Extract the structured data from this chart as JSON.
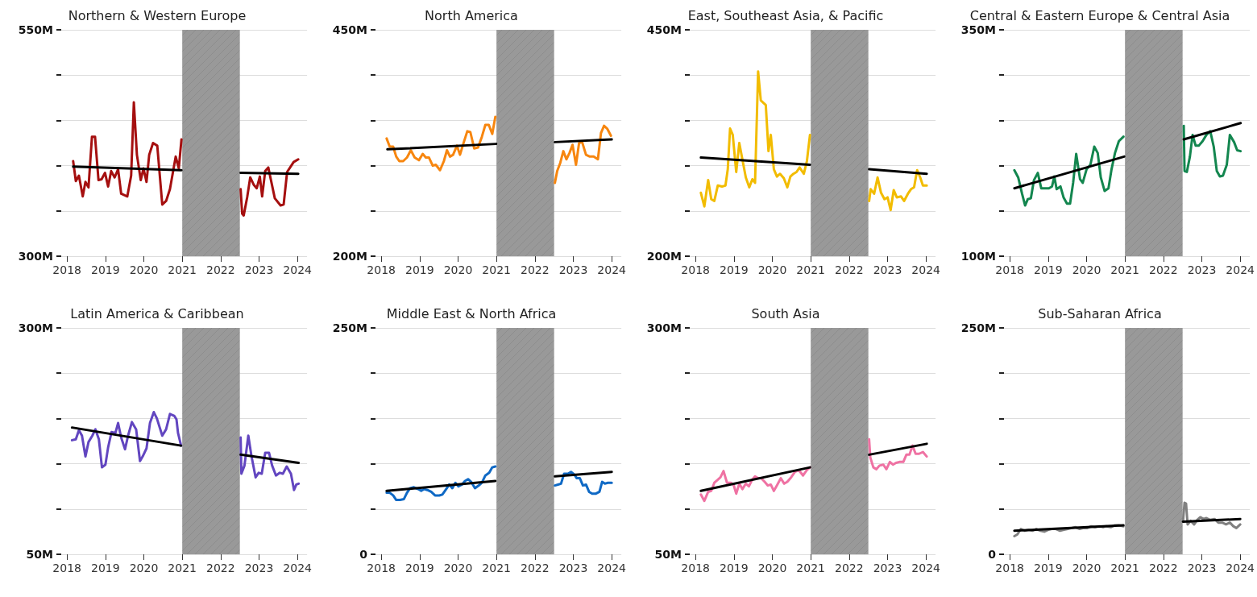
{
  "chart_data": [
    {
      "type": "line",
      "title": "Northern & Western Europe",
      "xlim": [
        2017.85,
        2024.25
      ],
      "xticks": [
        2018,
        2019,
        2020,
        2021,
        2022,
        2023,
        2024
      ],
      "ylim": [
        300,
        550
      ],
      "yticks": [
        {
          "value": 300,
          "label": "300M"
        },
        {
          "value": 350,
          "label": null
        },
        {
          "value": 400,
          "label": null
        },
        {
          "value": 450,
          "label": null
        },
        {
          "value": 500,
          "label": null
        },
        {
          "value": 550,
          "label": "550M"
        }
      ],
      "grid": "y",
      "marker": "none",
      "bands": [
        {
          "axis": "x",
          "from": 2021,
          "to": 2022.5,
          "color": "#999999"
        }
      ],
      "series": [
        {
          "color": "#a50f0f",
          "x": [
            2018.16,
            2018.23,
            2018.31,
            2018.41,
            2018.48,
            2018.56,
            2018.65,
            2018.73,
            2018.82,
            2018.9,
            2018.99,
            2019.07,
            2019.15,
            2019.24,
            2019.33,
            2019.41,
            2019.57,
            2019.67,
            2019.74,
            2019.82,
            2019.92,
            2019.99,
            2020.07,
            2020.14,
            2020.24,
            2020.35,
            2020.48,
            2020.58,
            2020.68,
            2020.83,
            2020.91,
            2020.98
          ],
          "values": [
            405,
            383,
            389,
            366,
            382,
            376,
            432,
            432,
            384,
            385,
            392,
            377,
            394,
            387,
            396,
            369,
            366,
            389,
            470,
            412,
            384,
            397,
            382,
            412,
            425,
            422,
            357,
            361,
            374,
            410,
            397,
            429
          ]
        },
        {
          "color": "#a50f0f",
          "x": [
            2022.52,
            2022.56,
            2022.6,
            2022.69,
            2022.77,
            2022.86,
            2022.94,
            2023.02,
            2023.08,
            2023.16,
            2023.24,
            2023.41,
            2023.56,
            2023.64,
            2023.73,
            2023.9,
            2024.02
          ],
          "values": [
            374,
            347,
            345,
            365,
            387,
            379,
            375,
            388,
            366,
            394,
            398,
            364,
            356,
            357,
            393,
            404,
            407
          ]
        },
        {
          "color": "#000000",
          "x": [
            2018.16,
            2020.98
          ],
          "values": [
            399,
            395
          ]
        },
        {
          "color": "#000000",
          "x": [
            2022.52,
            2024.02
          ],
          "values": [
            392,
            391
          ]
        }
      ]
    },
    {
      "type": "line",
      "title": "North America",
      "xlim": [
        2017.85,
        2024.25
      ],
      "xticks": [
        2018,
        2019,
        2020,
        2021,
        2022,
        2023,
        2024
      ],
      "ylim": [
        200,
        450
      ],
      "yticks": [
        {
          "value": 200,
          "label": "200M"
        },
        {
          "value": 250,
          "label": null
        },
        {
          "value": 300,
          "label": null
        },
        {
          "value": 350,
          "label": null
        },
        {
          "value": 400,
          "label": null
        },
        {
          "value": 450,
          "label": "450M"
        }
      ],
      "grid": "y",
      "marker": "none",
      "bands": [
        {
          "axis": "x",
          "from": 2021,
          "to": 2022.5,
          "color": "#999999"
        }
      ],
      "series": [
        {
          "color": "#f7860f",
          "x": [
            2018.14,
            2018.22,
            2018.31,
            2018.39,
            2018.47,
            2018.57,
            2018.67,
            2018.77,
            2018.87,
            2018.98,
            2019.08,
            2019.16,
            2019.24,
            2019.34,
            2019.42,
            2019.53,
            2019.63,
            2019.71,
            2019.79,
            2019.87,
            2019.97,
            2020.05,
            2020.15,
            2020.24,
            2020.32,
            2020.42,
            2020.52,
            2020.62,
            2020.71,
            2020.8,
            2020.89,
            2020.97
          ],
          "values": [
            330,
            321,
            321,
            310,
            305,
            305,
            309,
            317,
            309,
            306,
            313,
            309,
            309,
            300,
            301,
            295,
            305,
            317,
            310,
            312,
            322,
            312,
            326,
            338,
            337,
            319,
            320,
            332,
            345,
            345,
            335,
            354
          ]
        },
        {
          "color": "#f7860f",
          "x": [
            2022.52,
            2022.58,
            2022.66,
            2022.74,
            2022.82,
            2022.9,
            2022.98,
            2023.07,
            2023.15,
            2023.23,
            2023.33,
            2023.43,
            2023.53,
            2023.64,
            2023.72,
            2023.8,
            2023.88,
            2023.98
          ],
          "values": [
            281,
            294,
            303,
            316,
            307,
            314,
            323,
            301,
            325,
            326,
            312,
            310,
            310,
            307,
            336,
            344,
            341,
            333
          ]
        },
        {
          "color": "#000000",
          "x": [
            2018.16,
            2020.99
          ],
          "values": [
            318,
            324
          ]
        },
        {
          "color": "#000000",
          "x": [
            2022.52,
            2024.0
          ],
          "values": [
            326,
            329
          ]
        }
      ]
    },
    {
      "type": "line",
      "title": "East, Southeast Asia, & Pacific",
      "xlim": [
        2017.85,
        2024.25
      ],
      "xticks": [
        2018,
        2019,
        2020,
        2021,
        2022,
        2023,
        2024
      ],
      "ylim": [
        200,
        450
      ],
      "yticks": [
        {
          "value": 200,
          "label": "200M"
        },
        {
          "value": 250,
          "label": null
        },
        {
          "value": 300,
          "label": null
        },
        {
          "value": 350,
          "label": null
        },
        {
          "value": 400,
          "label": null
        },
        {
          "value": 450,
          "label": "450M"
        }
      ],
      "grid": "y",
      "marker": "none",
      "bands": [
        {
          "axis": "x",
          "from": 2021,
          "to": 2022.5,
          "color": "#999999"
        }
      ],
      "series": [
        {
          "color": "#f2bc00",
          "x": [
            2018.14,
            2018.23,
            2018.33,
            2018.41,
            2018.49,
            2018.58,
            2018.69,
            2018.78,
            2018.84,
            2018.9,
            2018.97,
            2019.06,
            2019.14,
            2019.22,
            2019.31,
            2019.4,
            2019.48,
            2019.55,
            2019.63,
            2019.7,
            2019.83,
            2019.9,
            2019.96,
            2020.04,
            2020.12,
            2020.2,
            2020.3,
            2020.39,
            2020.47,
            2020.55,
            2020.63,
            2020.71,
            2020.82,
            2020.9,
            2020.98
          ],
          "values": [
            270,
            255,
            284,
            263,
            261,
            278,
            277,
            278,
            296,
            341,
            334,
            293,
            325,
            307,
            287,
            276,
            285,
            281,
            404,
            372,
            367,
            316,
            334,
            296,
            288,
            291,
            286,
            276,
            288,
            291,
            293,
            298,
            291,
            305,
            334
          ]
        },
        {
          "color": "#f2bc00",
          "x": [
            2022.52,
            2022.56,
            2022.65,
            2022.74,
            2022.83,
            2022.92,
            2023.0,
            2023.08,
            2023.16,
            2023.24,
            2023.35,
            2023.43,
            2023.53,
            2023.61,
            2023.69,
            2023.77,
            2023.85,
            2023.92,
            2024.02
          ],
          "values": [
            261,
            274,
            269,
            287,
            270,
            263,
            265,
            251,
            273,
            265,
            266,
            261,
            269,
            274,
            276,
            295,
            287,
            278,
            278
          ]
        },
        {
          "color": "#000000",
          "x": [
            2018.14,
            2020.98
          ],
          "values": [
            309,
            301
          ]
        },
        {
          "color": "#000000",
          "x": [
            2022.52,
            2024.02
          ],
          "values": [
            296,
            291
          ]
        }
      ]
    },
    {
      "type": "line",
      "title": "Central & Eastern Europe & Central Asia",
      "xlim": [
        2017.85,
        2024.25
      ],
      "xticks": [
        2018,
        2019,
        2020,
        2021,
        2022,
        2023,
        2024
      ],
      "ylim": [
        100,
        350
      ],
      "yticks": [
        {
          "value": 100,
          "label": "100M"
        },
        {
          "value": 150,
          "label": null
        },
        {
          "value": 200,
          "label": null
        },
        {
          "value": 250,
          "label": null
        },
        {
          "value": 300,
          "label": null
        },
        {
          "value": 350,
          "label": "350M"
        }
      ],
      "grid": "y",
      "marker": "none",
      "bands": [
        {
          "axis": "x",
          "from": 2021,
          "to": 2022.5,
          "color": "#999999"
        }
      ],
      "series": [
        {
          "color": "#13864f",
          "x": [
            2018.12,
            2018.22,
            2018.32,
            2018.4,
            2018.47,
            2018.55,
            2018.63,
            2018.73,
            2018.82,
            2018.92,
            2019.02,
            2019.1,
            2019.16,
            2019.22,
            2019.32,
            2019.4,
            2019.49,
            2019.57,
            2019.65,
            2019.73,
            2019.83,
            2019.9,
            2020.0,
            2020.1,
            2020.2,
            2020.29,
            2020.37,
            2020.47,
            2020.57,
            2020.65,
            2020.74,
            2020.84,
            2020.96
          ],
          "values": [
            195,
            187,
            169,
            156,
            163,
            164,
            184,
            192,
            175,
            175,
            175,
            177,
            188,
            174,
            177,
            165,
            158,
            158,
            181,
            213,
            185,
            181,
            196,
            201,
            221,
            214,
            187,
            172,
            175,
            196,
            214,
            227,
            232
          ]
        },
        {
          "color": "#13864f",
          "x": [
            2022.53,
            2022.55,
            2022.61,
            2022.69,
            2022.76,
            2022.84,
            2022.92,
            2023.02,
            2023.12,
            2023.22,
            2023.31,
            2023.39,
            2023.47,
            2023.55,
            2023.65,
            2023.73,
            2023.84,
            2023.92,
            2024.01
          ],
          "values": [
            244,
            194,
            193,
            210,
            234,
            222,
            222,
            227,
            234,
            238,
            221,
            194,
            188,
            189,
            201,
            234,
            226,
            217,
            216
          ]
        },
        {
          "color": "#000000",
          "x": [
            2018.12,
            2020.98
          ],
          "values": [
            175,
            210
          ]
        },
        {
          "color": "#000000",
          "x": [
            2022.53,
            2024.01
          ],
          "values": [
            229,
            247
          ]
        }
      ]
    },
    {
      "type": "line",
      "title": "Latin America & Caribbean",
      "xlim": [
        2017.85,
        2024.25
      ],
      "xticks": [
        2018,
        2019,
        2020,
        2021,
        2022,
        2023,
        2024
      ],
      "ylim": [
        50,
        300
      ],
      "yticks": [
        {
          "value": 50,
          "label": "50M"
        },
        {
          "value": 100,
          "label": null
        },
        {
          "value": 150,
          "label": null
        },
        {
          "value": 200,
          "label": null
        },
        {
          "value": 250,
          "label": null
        },
        {
          "value": 300,
          "label": "300M"
        }
      ],
      "grid": "y",
      "marker": "none",
      "bands": [
        {
          "axis": "x",
          "from": 2021,
          "to": 2022.5,
          "color": "#999999"
        }
      ],
      "series": [
        {
          "color": "#6246c0",
          "x": [
            2018.13,
            2018.23,
            2018.31,
            2018.39,
            2018.48,
            2018.56,
            2018.66,
            2018.74,
            2018.83,
            2018.91,
            2019.0,
            2019.07,
            2019.16,
            2019.26,
            2019.33,
            2019.41,
            2019.51,
            2019.59,
            2019.69,
            2019.8,
            2019.9,
            2019.97,
            2020.07,
            2020.16,
            2020.26,
            2020.34,
            2020.48,
            2020.58,
            2020.68,
            2020.79,
            2020.85,
            2020.89,
            2020.97
          ],
          "values": [
            176,
            177,
            187,
            181,
            158,
            174,
            181,
            188,
            177,
            146,
            149,
            168,
            185,
            184,
            195,
            179,
            166,
            181,
            196,
            188,
            153,
            158,
            167,
            195,
            207,
            200,
            181,
            188,
            205,
            203,
            199,
            184,
            170
          ]
        },
        {
          "color": "#6246c0",
          "x": [
            2022.52,
            2022.54,
            2022.62,
            2022.72,
            2022.8,
            2022.91,
            2022.99,
            2023.07,
            2023.16,
            2023.26,
            2023.34,
            2023.44,
            2023.54,
            2023.62,
            2023.72,
            2023.83,
            2023.91,
            2023.97,
            2024.03
          ],
          "values": [
            179,
            139,
            148,
            181,
            159,
            135,
            140,
            139,
            162,
            162,
            148,
            137,
            140,
            139,
            147,
            139,
            121,
            127,
            128
          ]
        },
        {
          "color": "#000000",
          "x": [
            2018.13,
            2020.97
          ],
          "values": [
            190,
            170
          ]
        },
        {
          "color": "#000000",
          "x": [
            2022.52,
            2024.03
          ],
          "values": [
            160,
            151
          ]
        }
      ]
    },
    {
      "type": "line",
      "title": "Middle East & North Africa",
      "xlim": [
        2017.85,
        2024.25
      ],
      "xticks": [
        2018,
        2019,
        2020,
        2021,
        2022,
        2023,
        2024
      ],
      "ylim": [
        0,
        250
      ],
      "yticks": [
        {
          "value": 0,
          "label": "0"
        },
        {
          "value": 50,
          "label": null
        },
        {
          "value": 100,
          "label": null
        },
        {
          "value": 150,
          "label": null
        },
        {
          "value": 200,
          "label": null
        },
        {
          "value": 250,
          "label": "250M"
        }
      ],
      "grid": "y",
      "marker": "none",
      "bands": [
        {
          "axis": "x",
          "from": 2021,
          "to": 2022.5,
          "color": "#999999"
        }
      ],
      "series": [
        {
          "color": "#0f69c5",
          "x": [
            2018.14,
            2018.22,
            2018.31,
            2018.39,
            2018.49,
            2018.59,
            2018.67,
            2018.75,
            2018.85,
            2018.96,
            2019.04,
            2019.12,
            2019.2,
            2019.3,
            2019.4,
            2019.51,
            2019.59,
            2019.69,
            2019.77,
            2019.85,
            2019.93,
            2020.01,
            2020.1,
            2020.18,
            2020.26,
            2020.34,
            2020.44,
            2020.54,
            2020.62,
            2020.71,
            2020.81,
            2020.89,
            2020.97
          ],
          "values": [
            68,
            68,
            65,
            60,
            60,
            61,
            68,
            73,
            74,
            72,
            70,
            72,
            71,
            69,
            65,
            65,
            66,
            72,
            77,
            73,
            79,
            75,
            77,
            81,
            83,
            80,
            73,
            76,
            79,
            87,
            90,
            96,
            97
          ]
        },
        {
          "color": "#0f69c5",
          "x": [
            2022.52,
            2022.6,
            2022.68,
            2022.76,
            2022.86,
            2022.94,
            2023.03,
            2023.09,
            2023.17,
            2023.25,
            2023.33,
            2023.41,
            2023.49,
            2023.59,
            2023.68,
            2023.75,
            2023.82,
            2023.9,
            2024.0
          ],
          "values": [
            76,
            77,
            78,
            89,
            89,
            91,
            88,
            84,
            84,
            76,
            77,
            69,
            67,
            67,
            69,
            80,
            78,
            79,
            79
          ]
        },
        {
          "color": "#000000",
          "x": [
            2018.14,
            2020.97
          ],
          "values": [
            70,
            81
          ]
        },
        {
          "color": "#000000",
          "x": [
            2022.52,
            2024.0
          ],
          "values": [
            86,
            91
          ]
        }
      ]
    },
    {
      "type": "line",
      "title": "South Asia",
      "xlim": [
        2017.85,
        2024.25
      ],
      "xticks": [
        2018,
        2019,
        2020,
        2021,
        2022,
        2023,
        2024
      ],
      "ylim": [
        50,
        300
      ],
      "yticks": [
        {
          "value": 50,
          "label": "50M"
        },
        {
          "value": 100,
          "label": null
        },
        {
          "value": 150,
          "label": null
        },
        {
          "value": 200,
          "label": null
        },
        {
          "value": 250,
          "label": null
        },
        {
          "value": 300,
          "label": "300M"
        }
      ],
      "grid": "y",
      "marker": "none",
      "bands": [
        {
          "axis": "x",
          "from": 2021,
          "to": 2022.5,
          "color": "#999999"
        }
      ],
      "series": [
        {
          "color": "#ef72a3",
          "x": [
            2018.14,
            2018.23,
            2018.33,
            2018.41,
            2018.49,
            2018.57,
            2018.65,
            2018.73,
            2018.82,
            2018.92,
            2018.99,
            2019.06,
            2019.14,
            2019.22,
            2019.31,
            2019.39,
            2019.47,
            2019.55,
            2019.63,
            2019.71,
            2019.8,
            2019.88,
            2019.96,
            2020.04,
            2020.12,
            2020.22,
            2020.31,
            2020.39,
            2020.49,
            2020.59,
            2020.69,
            2020.8,
            2020.9,
            2020.98
          ],
          "values": [
            116,
            109,
            119,
            120,
            129,
            132,
            135,
            142,
            129,
            129,
            127,
            117,
            128,
            122,
            128,
            125,
            132,
            136,
            134,
            134,
            130,
            126,
            127,
            120,
            126,
            134,
            128,
            130,
            135,
            141,
            143,
            137,
            143,
            146
          ]
        },
        {
          "color": "#ef72a3",
          "x": [
            2022.52,
            2022.55,
            2022.63,
            2022.71,
            2022.79,
            2022.89,
            2022.97,
            2023.06,
            2023.14,
            2023.22,
            2023.31,
            2023.41,
            2023.49,
            2023.57,
            2023.65,
            2023.73,
            2023.82,
            2023.92,
            2024.02
          ],
          "values": [
            177,
            157,
            146,
            144,
            148,
            149,
            144,
            152,
            149,
            151,
            152,
            152,
            160,
            160,
            170,
            161,
            161,
            163,
            158
          ]
        },
        {
          "color": "#000000",
          "x": [
            2018.14,
            2020.98
          ],
          "values": [
            120,
            146
          ]
        },
        {
          "color": "#000000",
          "x": [
            2022.52,
            2024.02
          ],
          "values": [
            160,
            172
          ]
        }
      ]
    },
    {
      "type": "line",
      "title": "Sub-Saharan Africa",
      "xlim": [
        2017.85,
        2024.25
      ],
      "xticks": [
        2018,
        2019,
        2020,
        2021,
        2022,
        2023,
        2024
      ],
      "ylim": [
        0,
        250
      ],
      "yticks": [
        {
          "value": 0,
          "label": "0"
        },
        {
          "value": 50,
          "label": null
        },
        {
          "value": 100,
          "label": null
        },
        {
          "value": 150,
          "label": null
        },
        {
          "value": 200,
          "label": null
        },
        {
          "value": 250,
          "label": "250M"
        }
      ],
      "grid": "y",
      "marker": "none",
      "bands": [
        {
          "axis": "x",
          "from": 2021,
          "to": 2022.5,
          "color": "#999999"
        }
      ],
      "series": [
        {
          "color": "#808080",
          "x": [
            2018.12,
            2018.2,
            2018.29,
            2018.39,
            2018.49,
            2018.59,
            2018.69,
            2018.8,
            2018.9,
            2019.0,
            2019.1,
            2019.2,
            2019.31,
            2019.41,
            2019.51,
            2019.61,
            2019.71,
            2019.82,
            2019.92,
            2020.02,
            2020.12,
            2020.22,
            2020.33,
            2020.43,
            2020.51,
            2020.63,
            2020.73,
            2020.84,
            2020.96
          ],
          "values": [
            20,
            22,
            28,
            26,
            27,
            26,
            28,
            26,
            25,
            27,
            28,
            28,
            26,
            27,
            28,
            29,
            30,
            28,
            29,
            29,
            31,
            30,
            31,
            30,
            31,
            30,
            32,
            32,
            31
          ]
        },
        {
          "color": "#808080",
          "x": [
            2022.51,
            2022.55,
            2022.59,
            2022.63,
            2022.71,
            2022.8,
            2022.88,
            2022.96,
            2023.04,
            2023.12,
            2023.22,
            2023.33,
            2023.43,
            2023.53,
            2023.63,
            2023.73,
            2023.82,
            2023.9,
            2024.0
          ],
          "values": [
            36,
            57,
            56,
            33,
            37,
            33,
            38,
            41,
            39,
            40,
            38,
            39,
            35,
            35,
            33,
            35,
            31,
            29,
            33
          ]
        },
        {
          "color": "#000000",
          "x": [
            2018.12,
            2020.96
          ],
          "values": [
            26,
            32
          ]
        },
        {
          "color": "#000000",
          "x": [
            2022.51,
            2024.0
          ],
          "values": [
            36,
            39
          ]
        }
      ]
    }
  ]
}
